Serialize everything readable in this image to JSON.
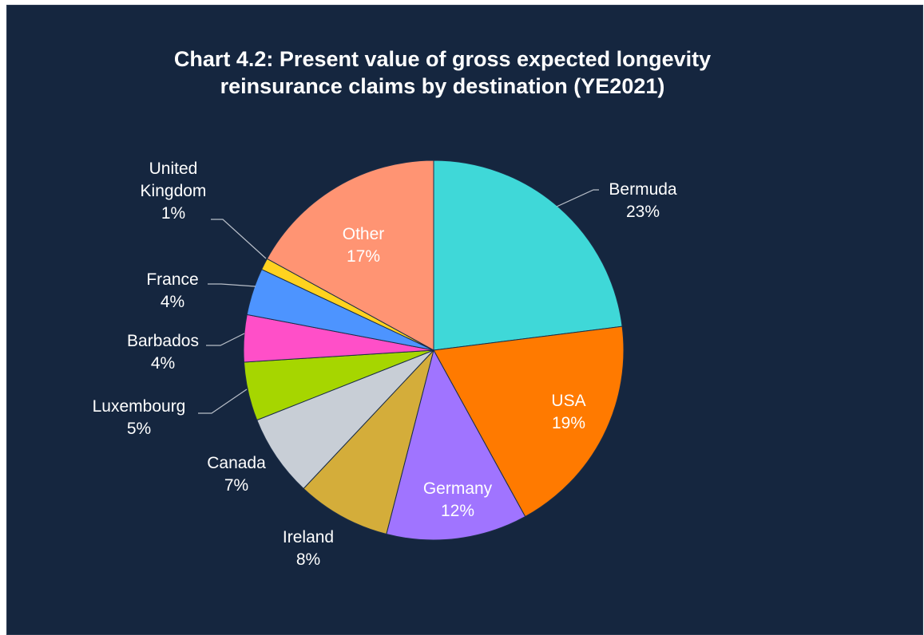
{
  "chart_data": {
    "type": "pie",
    "title_lines": [
      "Chart 4.2: Present value of gross expected longevity",
      "reinsurance claims by destination (YE2021)"
    ],
    "slices": [
      {
        "name": "Bermuda",
        "value": 23,
        "label": "23%",
        "color": "#3fd8d8"
      },
      {
        "name": "USA",
        "value": 19,
        "label": "19%",
        "color": "#ff7a00"
      },
      {
        "name": "Germany",
        "value": 12,
        "label": "12%",
        "color": "#a074ff"
      },
      {
        "name": "Ireland",
        "value": 8,
        "label": "8%",
        "color": "#d4ad3a"
      },
      {
        "name": "Canada",
        "value": 7,
        "label": "7%",
        "color": "#c8ced6"
      },
      {
        "name": "Luxembourg",
        "value": 5,
        "label": "5%",
        "color": "#a6d600"
      },
      {
        "name": "Barbados",
        "value": 4,
        "label": "4%",
        "color": "#ff4fc8"
      },
      {
        "name": "France",
        "value": 4,
        "label": "4%",
        "color": "#4d94ff"
      },
      {
        "name": "United Kingdom",
        "value": 1,
        "label": "1%",
        "color": "#ffd21f"
      },
      {
        "name": "Other",
        "value": 17,
        "label": "17%",
        "color": "#ff9473"
      }
    ]
  }
}
